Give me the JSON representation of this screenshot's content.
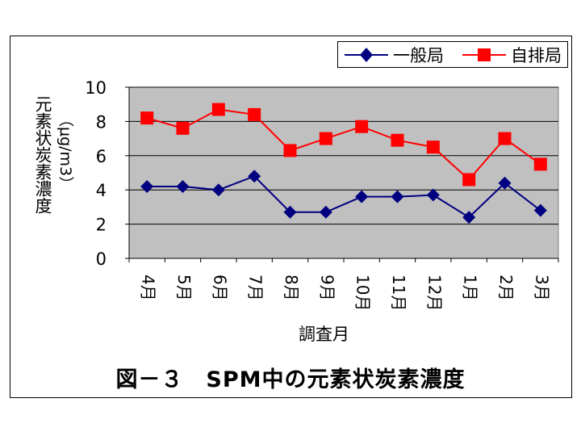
{
  "chart_data": {
    "type": "line",
    "title": "図－３　SPM中の元素状炭素濃度",
    "xlabel": "調査月",
    "ylabel": "元素状炭素濃度",
    "yunit": "（μg/m3）",
    "ylim": [
      0,
      10
    ],
    "yticks": [
      "0",
      "2",
      "4",
      "6",
      "8",
      "10"
    ],
    "grid": true,
    "legend": "top-right",
    "categories": [
      "4月",
      "5月",
      "6月",
      "7月",
      "8月",
      "9月",
      "10月",
      "11月",
      "12月",
      "1月",
      "2月",
      "3月"
    ],
    "series": [
      {
        "name": "一般局",
        "color": "#000080",
        "marker": "diamond",
        "values": [
          4.2,
          4.2,
          4.0,
          4.8,
          2.7,
          2.7,
          3.6,
          3.6,
          3.7,
          2.4,
          4.4,
          2.8
        ]
      },
      {
        "name": "自排局",
        "color": "#ff0000",
        "marker": "square",
        "values": [
          8.2,
          7.6,
          8.7,
          8.4,
          6.3,
          7.0,
          7.7,
          6.9,
          6.5,
          4.6,
          7.0,
          5.5
        ]
      }
    ],
    "colors": {
      "plot_background": "#c0c0c0",
      "gridline": "#000000"
    }
  }
}
